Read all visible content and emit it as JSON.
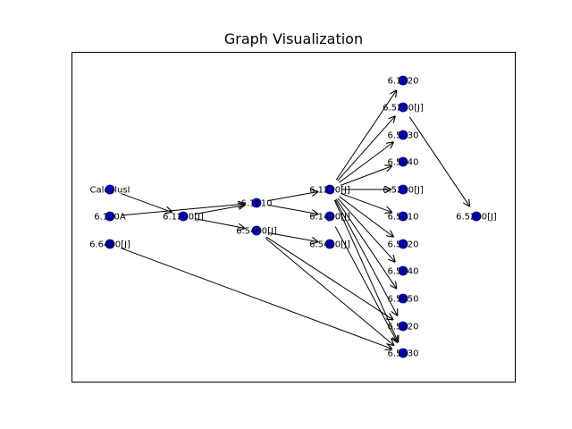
{
  "title": "Graph Visualization",
  "colors": {
    "node": "#0000cc",
    "edge": "#000000",
    "background": "#ffffff"
  },
  "nodes": [
    {
      "id": "calculus",
      "label": "CalculusI"
    },
    {
      "id": "n6110a",
      "label": "6.100A"
    },
    {
      "id": "n6640",
      "label": "6.6400[J]"
    },
    {
      "id": "n6120",
      "label": "6.1200[J]"
    },
    {
      "id": "n6101",
      "label": "6.1010"
    },
    {
      "id": "n6540",
      "label": "6.5400[J]"
    },
    {
      "id": "n6122",
      "label": "6.1220[J]"
    },
    {
      "id": "n6140",
      "label": "6.1400[J]"
    },
    {
      "id": "n6541",
      "label": "6.5410[J]"
    },
    {
      "id": "n61020",
      "label": "6.1020"
    },
    {
      "id": "n6520a",
      "label": "6.5200[J]"
    },
    {
      "id": "n6530",
      "label": "6.5030"
    },
    {
      "id": "n6544",
      "label": "6.5040"
    },
    {
      "id": "n6521",
      "label": "6.5210[J]"
    },
    {
      "id": "n6510",
      "label": "6.5010"
    },
    {
      "id": "n6522",
      "label": "6.5020"
    },
    {
      "id": "n6524",
      "label": "6.5040"
    },
    {
      "id": "n6550",
      "label": "6.5050"
    },
    {
      "id": "n6562",
      "label": "6.5620"
    },
    {
      "id": "n6563",
      "label": "6.5630"
    },
    {
      "id": "n6520b",
      "label": "6.5200[J]"
    }
  ],
  "edges": [
    [
      "calculus",
      "n6120"
    ],
    [
      "n6110a",
      "n6101"
    ],
    [
      "n6640",
      "n6563"
    ],
    [
      "n6120",
      "n6101"
    ],
    [
      "n6120",
      "n6540"
    ],
    [
      "n6101",
      "n6122"
    ],
    [
      "n6101",
      "n6140"
    ],
    [
      "n6540",
      "n6541"
    ],
    [
      "n6540",
      "n6562"
    ],
    [
      "n6540",
      "n6563"
    ],
    [
      "n6122",
      "n61020"
    ],
    [
      "n6122",
      "n6520a"
    ],
    [
      "n6122",
      "n6530"
    ],
    [
      "n6122",
      "n6544"
    ],
    [
      "n6122",
      "n6521"
    ],
    [
      "n6122",
      "n6510"
    ],
    [
      "n6122",
      "n6522"
    ],
    [
      "n6122",
      "n6524"
    ],
    [
      "n6122",
      "n6550"
    ],
    [
      "n6122",
      "n6562"
    ],
    [
      "n6122",
      "n6563"
    ],
    [
      "n6520a",
      "n6520b"
    ],
    [
      "n6140",
      "n6563"
    ]
  ]
}
